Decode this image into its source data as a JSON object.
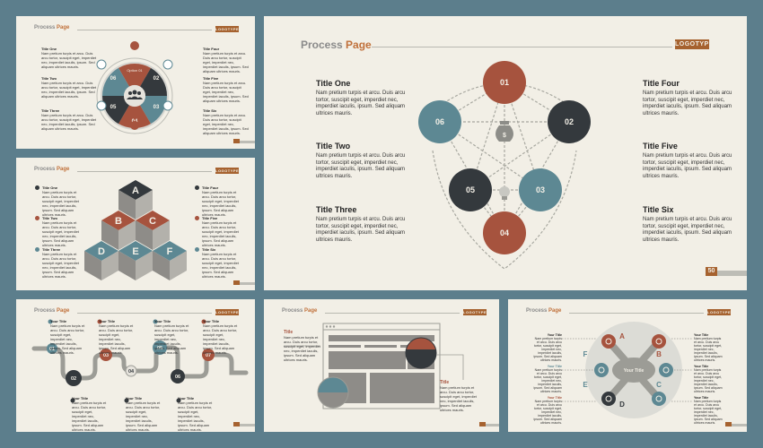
{
  "process": {
    "word1": "Process",
    "word2": "Page"
  },
  "logotype": "LOGOTYPE",
  "lorem": "Nam pretium turpis et arcu. Duis arcu tortor, suscipit eget, imperdiet nec, imperdiet iaculis, ipsum. Sed aliquam ultrices mauris.",
  "colors": {
    "rust": "#a6533e",
    "dark": "#34393d",
    "teal": "#5d8893",
    "bg": "#f2efe6",
    "accent": "#c0703a"
  },
  "main": {
    "page_number": "50",
    "titles": [
      "Title One",
      "Title Two",
      "Title Three",
      "Title Four",
      "Title Five",
      "Title Six"
    ],
    "nodes": [
      "01",
      "02",
      "03",
      "04",
      "05",
      "06"
    ]
  },
  "cycle": {
    "titles": [
      "Title One",
      "Title Two",
      "Title Three",
      "Title Four",
      "Title Five",
      "Title Six"
    ],
    "segments": [
      "Option 01",
      "02",
      "03",
      "04",
      "05",
      "06"
    ],
    "center_icon": "people-icon"
  },
  "cubes": {
    "letters": [
      "A",
      "B",
      "C",
      "D",
      "E",
      "F"
    ],
    "titles": [
      "Title One",
      "Title Two",
      "Title Three",
      "Title Four",
      "Title Five",
      "Title Six"
    ]
  },
  "timeline": {
    "nodes": [
      "01",
      "02",
      "03",
      "04",
      "05",
      "06",
      "07"
    ],
    "label": "Your Title"
  },
  "browser": {
    "title": "Title"
  },
  "hexwheel": {
    "center": "Your Title",
    "letters": [
      "A",
      "B",
      "C",
      "D",
      "E",
      "F"
    ],
    "label": "Your Title"
  }
}
